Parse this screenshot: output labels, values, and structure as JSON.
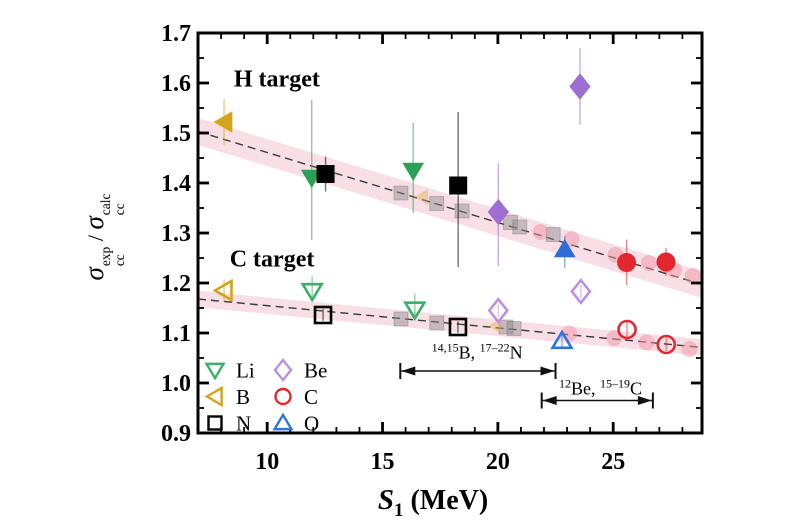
{
  "figure": {
    "background": "#ffffff"
  },
  "chart_data": {
    "type": "scatter",
    "title": "",
    "xlabel_parts": {
      "symbol": "S",
      "subscript": "1",
      "unit": " (MeV)"
    },
    "ylabel_parts": {
      "numerator_symbol": "σ",
      "numerator_sup": "exp",
      "numerator_sub": "cc",
      "divider": "/",
      "denominator_symbol": "σ",
      "denominator_sup": "calc",
      "denominator_sub": "cc"
    },
    "xlim": [
      7.0,
      28.85
    ],
    "ylim": [
      0.9,
      1.7
    ],
    "x_major_ticks": [
      10,
      15,
      20,
      25
    ],
    "x_tick_labels": [
      "10",
      "15",
      "20",
      "25"
    ],
    "x_minor_step": 1,
    "y_major_ticks": [
      0.9,
      1.0,
      1.1,
      1.2,
      1.3,
      1.4,
      1.5,
      1.6,
      1.7
    ],
    "y_tick_labels": [
      "0.9",
      "1.0",
      "1.1",
      "1.2",
      "1.3",
      "1.4",
      "1.5",
      "1.6",
      "1.7"
    ],
    "y_minor_step": 0.05,
    "grid": false,
    "group_labels": [
      {
        "text": "H target",
        "x": 10.42,
        "y": 1.606
      },
      {
        "text": "C target",
        "x": 10.21,
        "y": 1.246
      }
    ],
    "markers": {
      "Li": {
        "shape": "triangle-down",
        "color": "#2aa157",
        "open_color": "#3bb068"
      },
      "B": {
        "shape": "triangle-left",
        "color": "#d5a41b",
        "open_color": "#d5a41b"
      },
      "N": {
        "shape": "square",
        "color": "#000000",
        "open_color": "#000000"
      },
      "Be": {
        "shape": "diamond",
        "color": "#9d6fd2",
        "open_color": "#bd8fe2"
      },
      "C": {
        "shape": "circle",
        "color": "#e2282e",
        "open_color": "#e2282e"
      },
      "O": {
        "shape": "triangle-up",
        "color": "#2e6bd6",
        "open_color": "#3173e0"
      }
    },
    "series": [
      {
        "name": "H target",
        "style": "filled",
        "points": [
          {
            "el": "B",
            "x": 8.13,
            "y": 1.522,
            "ep": 0.046,
            "em": 0.046
          },
          {
            "el": "Li",
            "x": 11.93,
            "y": 1.411,
            "ep": 0.155,
            "em": 0.125
          },
          {
            "el": "N",
            "x": 12.53,
            "y": 1.418,
            "ep": 0.035,
            "em": 0.035
          },
          {
            "el": "Li",
            "x": 16.33,
            "y": 1.425,
            "ep": 0.095,
            "em": 0.085
          },
          {
            "el": "N",
            "x": 18.28,
            "y": 1.395,
            "ep": 0.147,
            "em": 0.163
          },
          {
            "el": "Be",
            "x": 20.02,
            "y": 1.342,
            "ep": 0.098,
            "em": 0.108
          },
          {
            "el": "O",
            "x": 22.9,
            "y": 1.267,
            "ep": 0.027,
            "em": 0.037
          },
          {
            "el": "Be",
            "x": 23.56,
            "y": 1.593,
            "ep": 0.077,
            "em": 0.077
          },
          {
            "el": "C",
            "x": 25.58,
            "y": 1.241,
            "ep": 0.046,
            "em": 0.045
          },
          {
            "el": "C",
            "x": 27.29,
            "y": 1.242,
            "ep": 0.028,
            "em": 0.028
          }
        ]
      },
      {
        "name": "C target",
        "style": "open",
        "points": [
          {
            "el": "B",
            "x": 8.13,
            "y": 1.185,
            "ep": 0.022,
            "em": 0.022
          },
          {
            "el": "Li",
            "x": 11.95,
            "y": 1.184,
            "ep": 0.029,
            "em": 0.02
          },
          {
            "el": "N",
            "x": 12.42,
            "y": 1.136,
            "ep": 0.012,
            "em": 0.012
          },
          {
            "el": "Li",
            "x": 16.4,
            "y": 1.147,
            "ep": 0.032,
            "em": 0.02
          },
          {
            "el": "N",
            "x": 18.27,
            "y": 1.112,
            "ep": 0.012,
            "em": 0.012
          },
          {
            "el": "Be",
            "x": 20.02,
            "y": 1.145,
            "ep": 0.013,
            "em": 0.013
          },
          {
            "el": "O",
            "x": 22.78,
            "y": 1.084,
            "ep": 0.02,
            "em": 0.015
          },
          {
            "el": "Be",
            "x": 23.6,
            "y": 1.183,
            "ep": 0.013,
            "em": 0.013
          },
          {
            "el": "C",
            "x": 25.6,
            "y": 1.107,
            "ep": 0.016,
            "em": 0.016
          },
          {
            "el": "C",
            "x": 27.3,
            "y": 1.077,
            "ep": 0.013,
            "em": 0.013
          }
        ]
      }
    ],
    "trend_lines": [
      {
        "name": "H target fit",
        "x1": 7.0,
        "y1": 1.503,
        "x2": 28.85,
        "y2": 1.197,
        "band": 0.027
      },
      {
        "name": "C target fit",
        "x1": 7.0,
        "y1": 1.168,
        "x2": 28.85,
        "y2": 1.071,
        "band": 0.0165
      }
    ],
    "background_markers": [
      {
        "shape": "square",
        "x": 15.8,
        "y": 1.38,
        "s": 7,
        "color": "#8a8a8a",
        "opacity": 0.45
      },
      {
        "shape": "square",
        "x": 17.35,
        "y": 1.359,
        "s": 7,
        "color": "#8a8a8a",
        "opacity": 0.45
      },
      {
        "shape": "square",
        "x": 18.45,
        "y": 1.344,
        "s": 7,
        "color": "#8a8a8a",
        "opacity": 0.45
      },
      {
        "shape": "square",
        "x": 20.55,
        "y": 1.321,
        "s": 7,
        "color": "#8a8a8a",
        "opacity": 0.45
      },
      {
        "shape": "square",
        "x": 20.95,
        "y": 1.312,
        "s": 7,
        "color": "#8a8a8a",
        "opacity": 0.45
      },
      {
        "shape": "square",
        "x": 22.4,
        "y": 1.297,
        "s": 7,
        "color": "#8a8a8a",
        "opacity": 0.45
      },
      {
        "shape": "triangle-left",
        "x": 16.7,
        "y": 1.372,
        "s": 8,
        "color": "#e3ac52",
        "opacity": 0.45
      },
      {
        "shape": "circle",
        "x": 21.85,
        "y": 1.302,
        "s": 8,
        "color": "#ef93a4",
        "opacity": 0.5
      },
      {
        "shape": "circle",
        "x": 23.2,
        "y": 1.288,
        "s": 8,
        "color": "#ef93a4",
        "opacity": 0.5
      },
      {
        "shape": "circle",
        "x": 25.1,
        "y": 1.256,
        "s": 8,
        "color": "#ef93a4",
        "opacity": 0.5
      },
      {
        "shape": "circle",
        "x": 26.55,
        "y": 1.24,
        "s": 8,
        "color": "#ef93a4",
        "opacity": 0.5
      },
      {
        "shape": "circle",
        "x": 27.65,
        "y": 1.226,
        "s": 8,
        "color": "#ef93a4",
        "opacity": 0.5
      },
      {
        "shape": "circle",
        "x": 28.45,
        "y": 1.214,
        "s": 8,
        "color": "#ef93a4",
        "opacity": 0.5
      },
      {
        "shape": "square",
        "x": 15.8,
        "y": 1.128,
        "s": 7,
        "color": "#8a8a8a",
        "opacity": 0.45
      },
      {
        "shape": "square",
        "x": 17.35,
        "y": 1.12,
        "s": 7,
        "color": "#8a8a8a",
        "opacity": 0.45
      },
      {
        "shape": "square",
        "x": 20.35,
        "y": 1.112,
        "s": 7,
        "color": "#8a8a8a",
        "opacity": 0.45
      },
      {
        "shape": "square",
        "x": 20.7,
        "y": 1.109,
        "s": 7,
        "color": "#8a8a8a",
        "opacity": 0.45
      },
      {
        "shape": "triangle-left",
        "x": 19.9,
        "y": 1.114,
        "s": 8,
        "color": "#e3ac52",
        "opacity": 0.45
      },
      {
        "shape": "circle",
        "x": 23.1,
        "y": 1.099,
        "s": 8,
        "color": "#ef93a4",
        "opacity": 0.5
      },
      {
        "shape": "circle",
        "x": 25.05,
        "y": 1.09,
        "s": 8,
        "color": "#ef93a4",
        "opacity": 0.5
      },
      {
        "shape": "circle",
        "x": 26.45,
        "y": 1.081,
        "s": 8,
        "color": "#ef93a4",
        "opacity": 0.5
      },
      {
        "shape": "circle",
        "x": 28.3,
        "y": 1.068,
        "s": 8,
        "color": "#ef93a4",
        "opacity": 0.5
      }
    ],
    "range_annotations": [
      {
        "label_parts": [
          {
            "sup": "14,15"
          },
          {
            "t": "B, "
          },
          {
            "sup": "17–22"
          },
          {
            "t": "N"
          }
        ],
        "x1": 15.77,
        "x2": 22.5,
        "y": 1.024,
        "label_x": 19.1,
        "label_y": 1.062
      },
      {
        "label_parts": [
          {
            "sup": "12"
          },
          {
            "t": "Be, "
          },
          {
            "sup": "15–19"
          },
          {
            "t": "C"
          }
        ],
        "x1": 21.9,
        "x2": 26.72,
        "y": 0.965,
        "label_x": 24.45,
        "label_y": 0.991
      }
    ],
    "legend": {
      "items": [
        {
          "label": "Li",
          "el": "Li"
        },
        {
          "label": "B",
          "el": "B"
        },
        {
          "label": "N",
          "el": "N"
        },
        {
          "label": "Be",
          "el": "Be"
        },
        {
          "label": "C",
          "el": "C"
        },
        {
          "label": "O",
          "el": "O"
        }
      ]
    },
    "style_colors": {
      "band": "#f8dfe6",
      "trend": "#3a3a3a",
      "frame": "#000000"
    }
  }
}
